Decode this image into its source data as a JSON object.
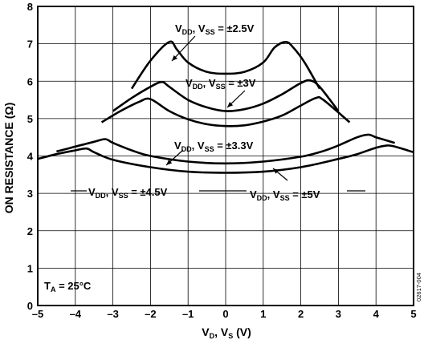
{
  "chart_data": {
    "type": "line",
    "xlabel_main": "V",
    "xlabel_sub1": "D",
    "xlabel_sep": ", V",
    "xlabel_sub2": "S",
    "xlabel_unit": " (V)",
    "ylabel": "ON RESISTANCE (Ω)",
    "xlim": [
      -5,
      5
    ],
    "ylim": [
      0,
      8
    ],
    "x_ticks": [
      "–5",
      "–4",
      "–3",
      "–2",
      "–1",
      "0",
      "1",
      "2",
      "3",
      "4",
      "5"
    ],
    "y_ticks": [
      "0",
      "1",
      "2",
      "3",
      "4",
      "5",
      "6",
      "7",
      "8"
    ],
    "grid": true,
    "annotation_temp": {
      "prefix": "T",
      "sub": "A",
      "value": " = 25°C"
    },
    "doc_number": "02617-004",
    "series": [
      {
        "label_sup": "±2.5V",
        "x": [
          -2.5,
          -2.0,
          -1.5,
          -1.3,
          -1.0,
          -0.5,
          0.0,
          0.5,
          1.0,
          1.3,
          1.6,
          1.8,
          2.1,
          2.5
        ],
        "y": [
          5.8,
          6.55,
          7.05,
          6.85,
          6.5,
          6.25,
          6.2,
          6.25,
          6.5,
          6.9,
          7.05,
          6.9,
          6.5,
          5.8
        ]
      },
      {
        "label_sup": "±3V",
        "x": [
          -3.0,
          -2.5,
          -2.0,
          -1.7,
          -1.5,
          -1.0,
          -0.5,
          0.0,
          0.5,
          1.0,
          1.5,
          2.0,
          2.25,
          2.5,
          3.0
        ],
        "y": [
          5.2,
          5.55,
          5.85,
          5.98,
          5.85,
          5.5,
          5.3,
          5.2,
          5.25,
          5.4,
          5.65,
          5.95,
          6.02,
          5.85,
          5.2
        ]
      },
      {
        "label_sup": "±3.3V",
        "x": [
          -3.3,
          -2.8,
          -2.3,
          -2.0,
          -1.5,
          -1.0,
          -0.5,
          0.0,
          0.5,
          1.0,
          1.5,
          2.0,
          2.4,
          2.6,
          3.3
        ],
        "y": [
          4.9,
          5.2,
          5.45,
          5.52,
          5.2,
          4.98,
          4.85,
          4.8,
          4.82,
          4.92,
          5.08,
          5.35,
          5.55,
          5.5,
          4.9
        ]
      },
      {
        "label_sup": "±4.5V",
        "x": [
          -4.5,
          -4.0,
          -3.5,
          -3.2,
          -3.0,
          -2.5,
          -2.0,
          -1.0,
          0.0,
          1.0,
          2.0,
          2.5,
          3.0,
          3.5,
          3.8,
          4.0,
          4.5
        ],
        "y": [
          4.12,
          4.25,
          4.38,
          4.45,
          4.35,
          4.15,
          4.0,
          3.85,
          3.8,
          3.85,
          3.98,
          4.1,
          4.28,
          4.5,
          4.57,
          4.5,
          4.35
        ]
      },
      {
        "label_sup": "±5V",
        "x": [
          -5.0,
          -4.5,
          -4.0,
          -3.7,
          -3.5,
          -3.0,
          -2.0,
          -1.0,
          0.0,
          1.0,
          2.0,
          3.0,
          3.5,
          4.0,
          4.3,
          4.5,
          5.0
        ],
        "y": [
          3.92,
          4.05,
          4.15,
          4.2,
          4.1,
          3.9,
          3.7,
          3.58,
          3.55,
          3.58,
          3.7,
          3.92,
          4.05,
          4.22,
          4.28,
          4.25,
          4.1
        ]
      }
    ],
    "labels": [
      {
        "main": "V",
        "sub1": "DD",
        "mid": ", V",
        "sub2": "SS",
        "eq": " = ",
        "sup": "±2.5V"
      },
      {
        "main": "V",
        "sub1": "DD",
        "mid": ", V",
        "sub2": "SS",
        "eq": " = ",
        "sup": "±3V"
      },
      {
        "main": "V",
        "sub1": "DD",
        "mid": ", V",
        "sub2": "SS",
        "eq": " = ",
        "sup": "±3.3V"
      },
      {
        "main": "V",
        "sub1": "DD",
        "mid": ", V",
        "sub2": "SS",
        "eq": " = ",
        "sup": "±4.5V"
      },
      {
        "main": "V",
        "sub1": "DD",
        "mid": ", V",
        "sub2": "SS",
        "eq": " = ",
        "sup": "±5V"
      }
    ]
  }
}
